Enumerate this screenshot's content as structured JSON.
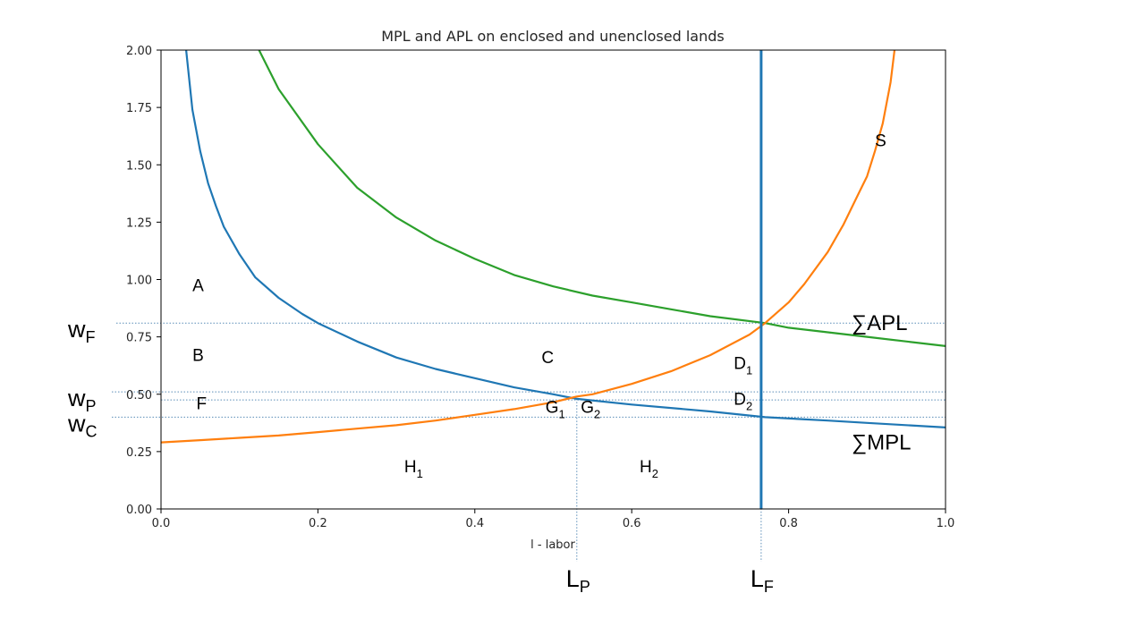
{
  "chart_data": {
    "type": "line",
    "title": "MPL and APL on enclosed and unenclosed lands",
    "xlabel": "l - labor",
    "ylabel": "",
    "xlim": [
      0.0,
      1.0
    ],
    "ylim": [
      0.0,
      2.0
    ],
    "xticks": [
      "0.0",
      "0.2",
      "0.4",
      "0.6",
      "0.8",
      "1.0"
    ],
    "yticks": [
      "0.00",
      "0.25",
      "0.50",
      "0.75",
      "1.00",
      "1.25",
      "1.50",
      "1.75",
      "2.00"
    ],
    "grid": false,
    "series": [
      {
        "name": "∑MPL",
        "color": "#1f77b4",
        "x": [
          0.032,
          0.04,
          0.05,
          0.06,
          0.07,
          0.08,
          0.1,
          0.12,
          0.15,
          0.18,
          0.2,
          0.25,
          0.3,
          0.35,
          0.4,
          0.45,
          0.5,
          0.53,
          0.6,
          0.7,
          0.77,
          0.85,
          0.9,
          1.0
        ],
        "y": [
          2.0,
          1.74,
          1.56,
          1.42,
          1.32,
          1.23,
          1.11,
          1.01,
          0.92,
          0.85,
          0.81,
          0.73,
          0.66,
          0.61,
          0.57,
          0.53,
          0.5,
          0.48,
          0.455,
          0.425,
          0.4,
          0.385,
          0.375,
          0.355
        ]
      },
      {
        "name": "∑APL",
        "color": "#2ca02c",
        "x": [
          0.125,
          0.15,
          0.2,
          0.25,
          0.3,
          0.35,
          0.4,
          0.45,
          0.5,
          0.55,
          0.6,
          0.65,
          0.7,
          0.77,
          0.8,
          0.85,
          0.9,
          1.0
        ],
        "y": [
          2.0,
          1.83,
          1.59,
          1.4,
          1.27,
          1.17,
          1.09,
          1.02,
          0.97,
          0.93,
          0.9,
          0.87,
          0.84,
          0.81,
          0.79,
          0.77,
          0.75,
          0.71
        ]
      },
      {
        "name": "S",
        "color": "#ff7f0e",
        "x": [
          0.0,
          0.05,
          0.1,
          0.15,
          0.2,
          0.25,
          0.3,
          0.35,
          0.4,
          0.45,
          0.5,
          0.53,
          0.55,
          0.6,
          0.65,
          0.7,
          0.75,
          0.77,
          0.8,
          0.82,
          0.85,
          0.87,
          0.89,
          0.9,
          0.91,
          0.92,
          0.93,
          0.935
        ],
        "y": [
          0.29,
          0.3,
          0.31,
          0.32,
          0.335,
          0.35,
          0.365,
          0.385,
          0.41,
          0.435,
          0.465,
          0.49,
          0.5,
          0.545,
          0.6,
          0.67,
          0.76,
          0.81,
          0.9,
          0.98,
          1.12,
          1.24,
          1.38,
          1.45,
          1.56,
          1.68,
          1.86,
          2.0
        ]
      },
      {
        "name": "",
        "color": "#1f77b4",
        "x": [
          0.765,
          0.765
        ],
        "y": [
          0.0,
          2.0
        ]
      }
    ],
    "reference_lines": {
      "horizontal": [
        0.81,
        0.51,
        0.475,
        0.4
      ],
      "vertical": [
        0.53,
        0.765
      ]
    },
    "annotations": [
      {
        "text": "A",
        "x": 0.04,
        "y": 0.95
      },
      {
        "text": "B",
        "x": 0.04,
        "y": 0.645
      },
      {
        "text": "F",
        "x": 0.045,
        "y": 0.435
      },
      {
        "text": "C",
        "x": 0.485,
        "y": 0.635
      },
      {
        "text": "S",
        "x": 0.91,
        "y": 1.58
      },
      {
        "text": "H",
        "sub": "1",
        "x": 0.31,
        "y": 0.16
      },
      {
        "text": "H",
        "sub": "2",
        "x": 0.61,
        "y": 0.16
      },
      {
        "text": "G",
        "sub": "1",
        "x": 0.49,
        "y": 0.42
      },
      {
        "text": "G",
        "sub": "2",
        "x": 0.535,
        "y": 0.42
      },
      {
        "text": "D",
        "sub": "1",
        "x": 0.73,
        "y": 0.61
      },
      {
        "text": "D",
        "sub": "2",
        "x": 0.73,
        "y": 0.455
      }
    ],
    "outside_labels": {
      "left": [
        {
          "text": "w",
          "sub": "F",
          "y": 0.81
        },
        {
          "text": "w",
          "sub": "P",
          "y": 0.51
        },
        {
          "text": "w",
          "sub": "C",
          "y": 0.4
        }
      ],
      "bottom": [
        {
          "text": "L",
          "sub": "P",
          "x": 0.53
        },
        {
          "text": "L",
          "sub": "F",
          "x": 0.765
        }
      ],
      "right": [
        {
          "text": "∑APL",
          "y": 0.81
        },
        {
          "text": "∑MPL",
          "y": 0.29
        }
      ]
    }
  }
}
